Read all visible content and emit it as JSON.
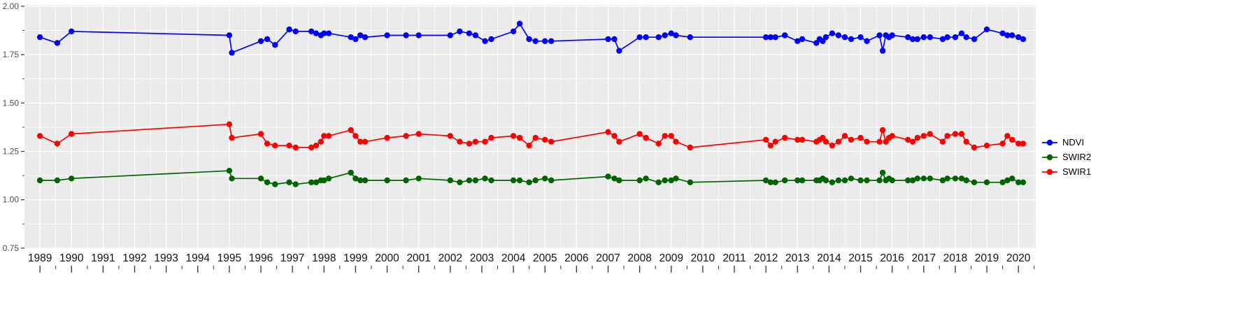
{
  "figure": {
    "background": "#ffffff"
  },
  "chart_data": {
    "type": "line",
    "title": "",
    "xlabel": "",
    "ylabel": "",
    "legend_position": "right",
    "grid": true,
    "panel_background": "#ebebeb",
    "grid_color": "#ffffff",
    "tick_color": "#333333",
    "y_label_color": "#4d4d4d",
    "x_label_color": "#111111",
    "xlim": [
      1988.51,
      2020.55
    ],
    "ylim": [
      0.746,
      2.007
    ],
    "y_ticks": [
      0.75,
      1.0,
      1.25,
      1.5,
      1.75,
      2.0
    ],
    "y_tick_labels": [
      "0.75",
      "1.00",
      "1.25",
      "1.50",
      "1.75",
      "2.00"
    ],
    "x_ticks": [
      1989,
      1990,
      1991,
      1992,
      1993,
      1994,
      1995,
      1996,
      1997,
      1998,
      1999,
      2000,
      2001,
      2002,
      2003,
      2004,
      2005,
      2006,
      2007,
      2008,
      2009,
      2010,
      2011,
      2012,
      2013,
      2014,
      2015,
      2016,
      2017,
      2018,
      2019,
      2020
    ],
    "x_tick_labels": [
      "1989",
      "1990",
      "1991",
      "1992",
      "1993",
      "1994",
      "1995",
      "1996",
      "1997",
      "1998",
      "1999",
      "2000",
      "2001",
      "2002",
      "2003",
      "2004",
      "2005",
      "2006",
      "2007",
      "2008",
      "2009",
      "2010",
      "2011",
      "2012",
      "2013",
      "2014",
      "2015",
      "2016",
      "2017",
      "2018",
      "2019",
      "2020"
    ],
    "x": [
      1989.0,
      1989.55,
      1990.0,
      1995.0,
      1995.08,
      1996.0,
      1996.2,
      1996.45,
      1996.9,
      1997.1,
      1997.6,
      1997.75,
      1997.9,
      1998.0,
      1998.15,
      1998.85,
      1999.0,
      1999.15,
      1999.3,
      2000.0,
      2000.6,
      2001.0,
      2002.0,
      2002.3,
      2002.6,
      2002.8,
      2003.1,
      2003.3,
      2004.0,
      2004.2,
      2004.5,
      2004.7,
      2005.0,
      2005.2,
      2007.0,
      2007.2,
      2007.35,
      2008.0,
      2008.2,
      2008.6,
      2008.8,
      2009.0,
      2009.15,
      2009.6,
      2012.0,
      2012.15,
      2012.3,
      2012.6,
      2013.0,
      2013.15,
      2013.6,
      2013.7,
      2013.8,
      2013.9,
      2014.1,
      2014.3,
      2014.5,
      2014.7,
      2015.0,
      2015.2,
      2015.6,
      2015.7,
      2015.8,
      2015.9,
      2016.0,
      2016.5,
      2016.65,
      2016.8,
      2017.0,
      2017.2,
      2017.6,
      2017.75,
      2018.0,
      2018.2,
      2018.35,
      2018.6,
      2019.0,
      2019.5,
      2019.65,
      2019.8,
      2020.0,
      2020.15
    ],
    "series": [
      {
        "name": "NDVI",
        "color": "#0000ff",
        "values": [
          1.84,
          1.81,
          1.87,
          1.85,
          1.76,
          1.82,
          1.83,
          1.8,
          1.88,
          1.87,
          1.87,
          1.86,
          1.85,
          1.86,
          1.86,
          1.84,
          1.83,
          1.85,
          1.84,
          1.85,
          1.85,
          1.85,
          1.85,
          1.87,
          1.86,
          1.85,
          1.82,
          1.83,
          1.87,
          1.91,
          1.83,
          1.82,
          1.82,
          1.82,
          1.83,
          1.83,
          1.77,
          1.84,
          1.84,
          1.84,
          1.85,
          1.86,
          1.85,
          1.84,
          1.84,
          1.84,
          1.84,
          1.85,
          1.82,
          1.83,
          1.81,
          1.83,
          1.82,
          1.84,
          1.86,
          1.85,
          1.84,
          1.83,
          1.84,
          1.82,
          1.85,
          1.77,
          1.85,
          1.84,
          1.85,
          1.84,
          1.83,
          1.83,
          1.84,
          1.84,
          1.83,
          1.84,
          1.84,
          1.86,
          1.84,
          1.83,
          1.88,
          1.86,
          1.85,
          1.85,
          1.84,
          1.83
        ]
      },
      {
        "name": "SWIR2",
        "color": "#006400",
        "values": [
          1.1,
          1.1,
          1.11,
          1.15,
          1.11,
          1.11,
          1.09,
          1.08,
          1.09,
          1.08,
          1.09,
          1.09,
          1.1,
          1.1,
          1.11,
          1.14,
          1.11,
          1.1,
          1.1,
          1.1,
          1.1,
          1.11,
          1.1,
          1.09,
          1.1,
          1.1,
          1.11,
          1.1,
          1.1,
          1.1,
          1.09,
          1.1,
          1.11,
          1.1,
          1.12,
          1.11,
          1.1,
          1.1,
          1.11,
          1.09,
          1.1,
          1.1,
          1.11,
          1.09,
          1.1,
          1.09,
          1.09,
          1.1,
          1.1,
          1.1,
          1.1,
          1.1,
          1.11,
          1.1,
          1.09,
          1.1,
          1.1,
          1.11,
          1.1,
          1.1,
          1.1,
          1.14,
          1.1,
          1.11,
          1.1,
          1.1,
          1.1,
          1.11,
          1.11,
          1.11,
          1.1,
          1.11,
          1.11,
          1.11,
          1.1,
          1.09,
          1.09,
          1.09,
          1.1,
          1.11,
          1.09,
          1.09
        ]
      },
      {
        "name": "SWIR1",
        "color": "#ff0000",
        "values": [
          1.33,
          1.29,
          1.34,
          1.39,
          1.32,
          1.34,
          1.29,
          1.28,
          1.28,
          1.27,
          1.27,
          1.28,
          1.3,
          1.33,
          1.33,
          1.36,
          1.33,
          1.3,
          1.3,
          1.32,
          1.33,
          1.34,
          1.33,
          1.3,
          1.29,
          1.3,
          1.3,
          1.32,
          1.33,
          1.32,
          1.28,
          1.32,
          1.31,
          1.3,
          1.35,
          1.33,
          1.3,
          1.34,
          1.32,
          1.29,
          1.33,
          1.33,
          1.3,
          1.27,
          1.31,
          1.28,
          1.3,
          1.32,
          1.31,
          1.31,
          1.3,
          1.31,
          1.32,
          1.3,
          1.28,
          1.3,
          1.33,
          1.31,
          1.32,
          1.3,
          1.3,
          1.36,
          1.3,
          1.32,
          1.33,
          1.31,
          1.3,
          1.32,
          1.33,
          1.34,
          1.3,
          1.33,
          1.34,
          1.34,
          1.3,
          1.27,
          1.28,
          1.29,
          1.33,
          1.31,
          1.29,
          1.29
        ]
      }
    ]
  },
  "legend": {
    "entries": [
      {
        "label": "NDVI",
        "color": "#0000ff"
      },
      {
        "label": "SWIR2",
        "color": "#006400"
      },
      {
        "label": "SWIR1",
        "color": "#ff0000"
      }
    ]
  }
}
